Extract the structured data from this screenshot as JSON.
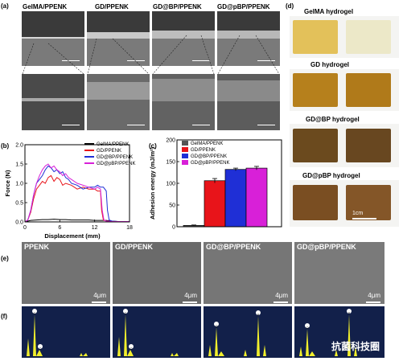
{
  "panel_labels": {
    "a": "(a)",
    "b": "(b)",
    "c": "(c)",
    "d": "(d)",
    "e": "(e)",
    "f": "(f)"
  },
  "panel_a": {
    "titles": [
      "GelMA/PPENK",
      "GD/PPENK",
      "GD@BP/PPENK",
      "GD@pBP/PPENK"
    ]
  },
  "panel_d": {
    "titles": [
      "GelMA hydrogel",
      "GD hydrogel",
      "GD@BP hydrogel",
      "GD@pBP hydrogel"
    ],
    "scale": "1cm"
  },
  "panel_e": {
    "titles": [
      "PPENK",
      "GD/PPENK",
      "GD@BP/PPENK",
      "GD@pBP/PPENK"
    ],
    "scale": "4μm"
  },
  "panel_f": {
    "peak_labels": [
      "C",
      "O",
      "N",
      "Na",
      "P",
      "S",
      "Cl",
      "K"
    ]
  },
  "watermark": "抗菌科技圈",
  "colors": {
    "black": "#000000",
    "red": "#e8141a",
    "blue": "#1f2fd6",
    "magenta": "#d820d8"
  },
  "chart_data": [
    {
      "type": "line",
      "title": "",
      "xlabel": "Displacement (mm)",
      "ylabel": "Force (N)",
      "xlim": [
        0,
        18
      ],
      "ylim": [
        0,
        2.0
      ],
      "xticks": [
        0,
        6,
        12,
        18
      ],
      "yticks": [
        0.0,
        0.5,
        1.0,
        1.5,
        2.0
      ],
      "legend_position": "top-right",
      "series": [
        {
          "name": "GelMA/PPENK",
          "color": "#000000",
          "x": [
            0,
            0.5,
            1,
            2,
            3,
            4,
            5,
            6,
            7,
            8,
            9,
            10,
            11,
            12,
            13,
            14,
            15,
            16,
            17,
            18
          ],
          "y": [
            0,
            0.02,
            0.04,
            0.05,
            0.06,
            0.06,
            0.07,
            0.06,
            0.06,
            0.05,
            0.05,
            0.05,
            0.05,
            0.04,
            0.04,
            0.04,
            0.02,
            0.01,
            0.01,
            0.01
          ]
        },
        {
          "name": "GD/PPENK",
          "color": "#e8141a",
          "x": [
            0,
            0.5,
            1,
            1.5,
            2,
            2.5,
            3,
            3.5,
            4,
            4.5,
            5,
            5.5,
            6,
            6.5,
            7,
            8,
            9,
            10,
            11,
            12,
            12.5,
            13,
            13.2,
            13.5,
            14,
            15,
            16,
            17,
            18
          ],
          "y": [
            0,
            0.05,
            0.25,
            0.6,
            0.85,
            0.95,
            1.05,
            1.0,
            1.15,
            1.2,
            1.05,
            1.15,
            1.1,
            0.95,
            1.0,
            0.95,
            0.85,
            0.9,
            0.85,
            0.85,
            0.8,
            0.8,
            0.3,
            0.05,
            0.02,
            0.01,
            0.01,
            0.01,
            0.01
          ]
        },
        {
          "name": "GD@BP/PPENK",
          "color": "#1f2fd6",
          "x": [
            0,
            0.5,
            1,
            1.5,
            2,
            2.5,
            3,
            3.5,
            4,
            4.5,
            5,
            5.5,
            6,
            6.5,
            7,
            7.5,
            8,
            9,
            10,
            11,
            12,
            12.5,
            13,
            13.5,
            14,
            14.2,
            14.5,
            15,
            16,
            17,
            18
          ],
          "y": [
            0,
            0.05,
            0.3,
            0.7,
            1.0,
            1.1,
            1.2,
            1.35,
            1.45,
            1.4,
            1.3,
            1.35,
            1.25,
            1.3,
            1.15,
            1.1,
            1.0,
            0.95,
            0.85,
            0.9,
            0.9,
            0.95,
            0.9,
            0.9,
            0.8,
            0.3,
            0.05,
            0.02,
            0.01,
            0.01,
            0.01
          ]
        },
        {
          "name": "GD@pBP/PPENK",
          "color": "#d820d8",
          "x": [
            0,
            0.5,
            1,
            1.5,
            2,
            2.5,
            3,
            3.5,
            4,
            4.5,
            5,
            5.5,
            6,
            6.5,
            7,
            7.5,
            8,
            9,
            10,
            11,
            12,
            12.5,
            13,
            13.3,
            13.6,
            14,
            15,
            16,
            17,
            18
          ],
          "y": [
            0,
            0.05,
            0.3,
            0.7,
            1.0,
            1.2,
            1.35,
            1.45,
            1.5,
            1.4,
            1.45,
            1.35,
            1.3,
            1.2,
            1.25,
            1.15,
            1.1,
            1.0,
            0.95,
            0.9,
            0.85,
            0.9,
            0.85,
            0.3,
            0.05,
            0.02,
            0.01,
            0.01,
            0.01,
            0.01
          ]
        }
      ]
    },
    {
      "type": "bar",
      "title": "",
      "xlabel": "",
      "ylabel": "Adhesion energy (mJ/m²)",
      "ylim": [
        0,
        200
      ],
      "yticks": [
        0,
        50,
        100,
        150,
        200
      ],
      "legend_position": "top-left",
      "series": [
        {
          "name": "GelMA/PPENK",
          "color": "#555555",
          "value": 3,
          "error": 1
        },
        {
          "name": "GD/PPENK",
          "color": "#e8141a",
          "value": 106,
          "error": 5
        },
        {
          "name": "GD@BP/PPENK",
          "color": "#1f2fd6",
          "value": 132,
          "error": 3
        },
        {
          "name": "GD@pBP/PPENK",
          "color": "#d820d8",
          "value": 135,
          "error": 4
        }
      ]
    }
  ]
}
